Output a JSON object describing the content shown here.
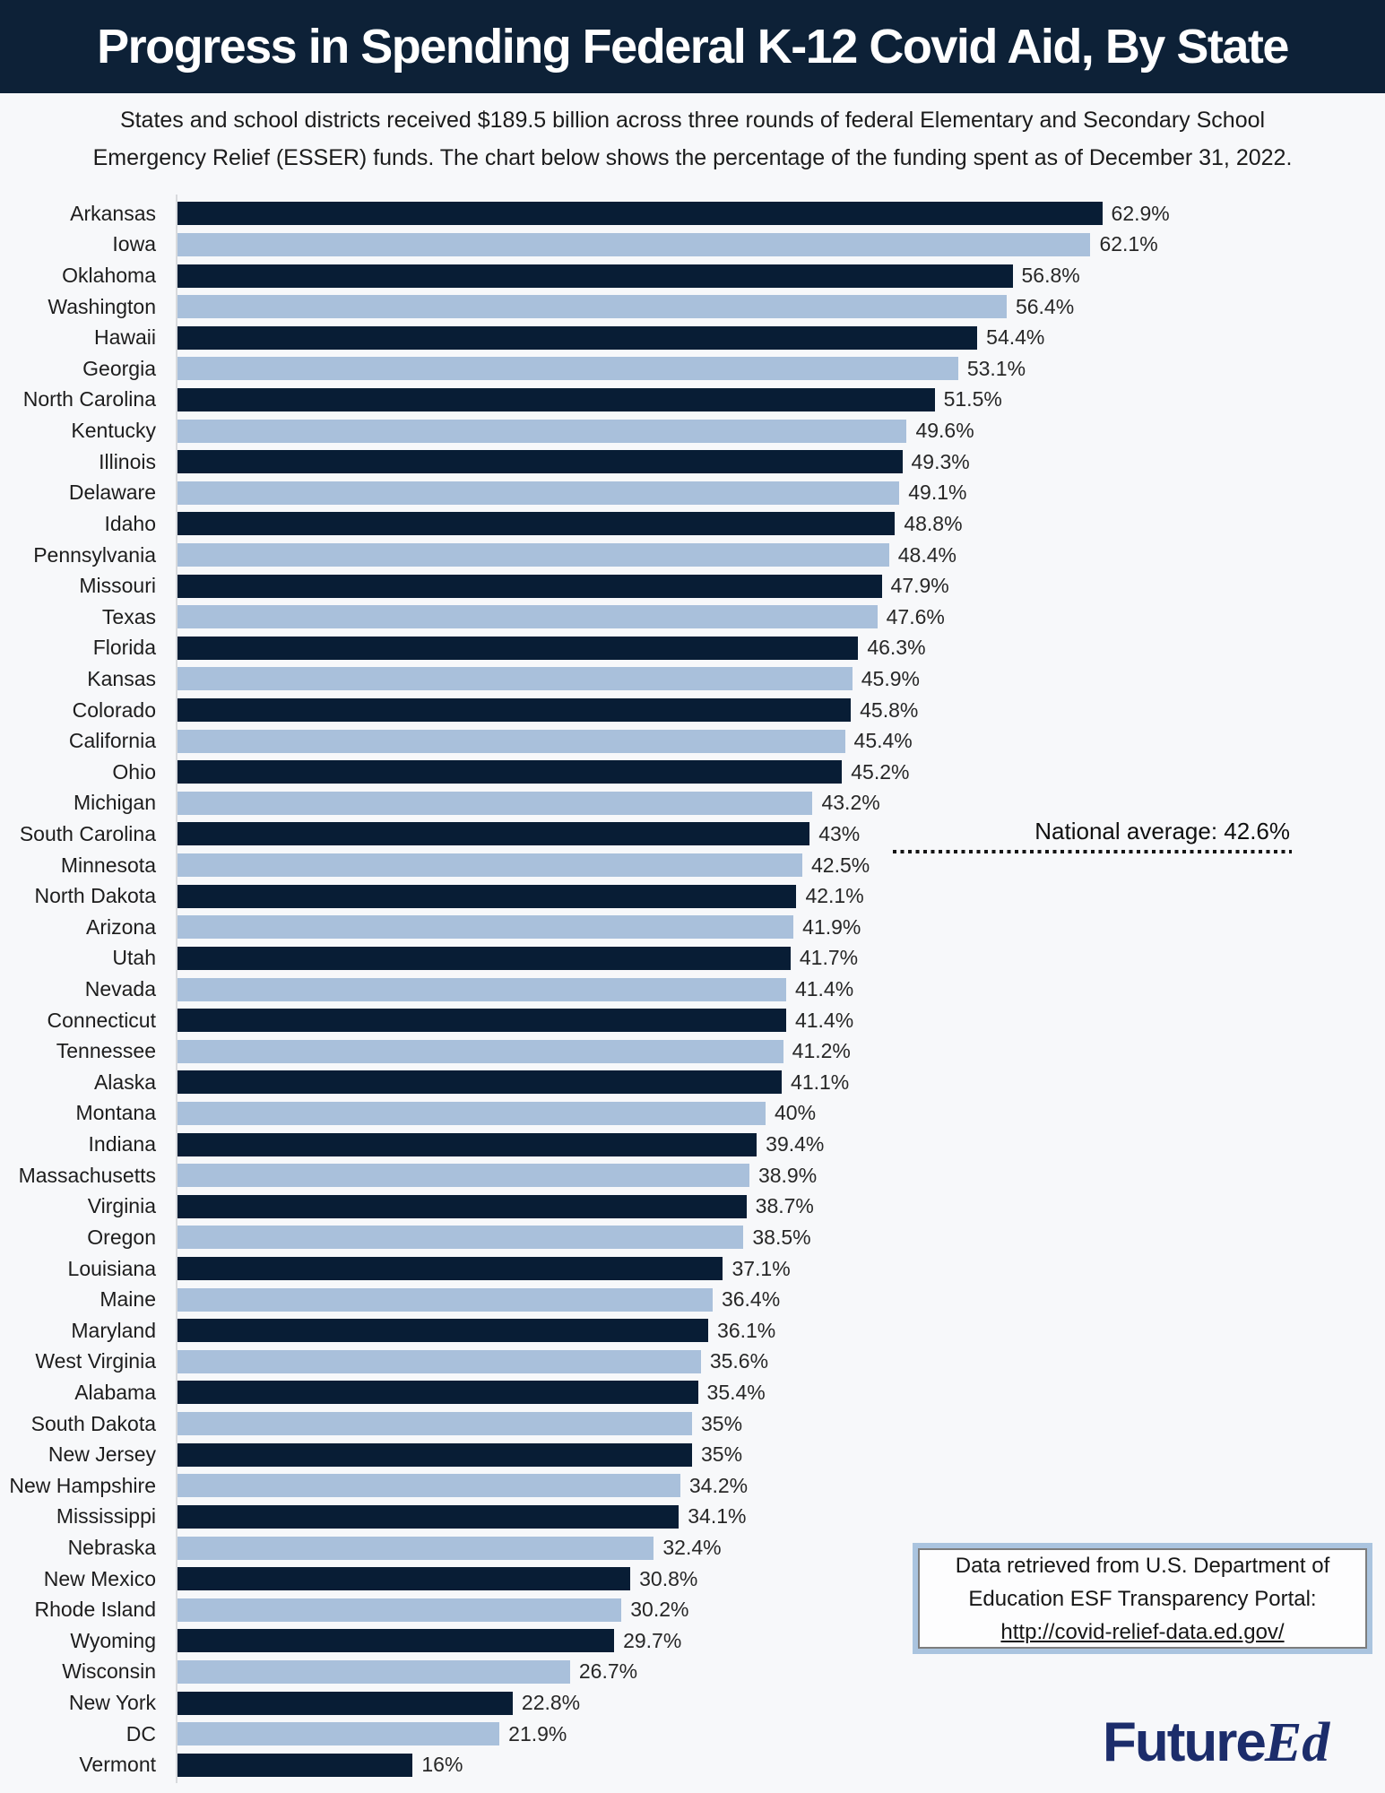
{
  "header": {
    "title": "Progress in Spending Federal K-12 Covid Aid, By State"
  },
  "subtitle": {
    "line1": "States and school districts received $189.5 billion across three rounds of federal Elementary and Secondary School",
    "line2": "Emergency Relief (ESSER) funds. The chart below shows the percentage of the funding spent as of December 31, 2022."
  },
  "chart_data": {
    "type": "bar",
    "orientation": "horizontal",
    "unit": "percent spent",
    "xlim": [
      0,
      63
    ],
    "grid": false,
    "legend": "none",
    "bar_color_odd_rows": "#081d35",
    "bar_color_even_rows": "#a9c0db",
    "categories": [
      "Arkansas",
      "Iowa",
      "Oklahoma",
      "Washington",
      "Hawaii",
      "Georgia",
      "North Carolina",
      "Kentucky",
      "Illinois",
      "Delaware",
      "Idaho",
      "Pennsylvania",
      "Missouri",
      "Texas",
      "Florida",
      "Kansas",
      "Colorado",
      "California",
      "Ohio",
      "Michigan",
      "South Carolina",
      "Minnesota",
      "North Dakota",
      "Arizona",
      "Utah",
      "Nevada",
      "Connecticut",
      "Tennessee",
      "Alaska",
      "Montana",
      "Indiana",
      "Massachusetts",
      "Virginia",
      "Oregon",
      "Louisiana",
      "Maine",
      "Maryland",
      "West Virginia",
      "Alabama",
      "South Dakota",
      "New Jersey",
      "New Hampshire",
      "Mississippi",
      "Nebraska",
      "New Mexico",
      "Rhode Island",
      "Wyoming",
      "Wisconsin",
      "New York",
      "DC",
      "Vermont"
    ],
    "values": [
      62.9,
      62.1,
      56.8,
      56.4,
      54.4,
      53.1,
      51.5,
      49.6,
      49.3,
      49.1,
      48.8,
      48.4,
      47.9,
      47.6,
      46.3,
      45.9,
      45.8,
      45.4,
      45.2,
      43.2,
      43,
      42.5,
      42.1,
      41.9,
      41.7,
      41.4,
      41.4,
      41.2,
      41.1,
      40,
      39.4,
      38.9,
      38.7,
      38.5,
      37.1,
      36.4,
      36.1,
      35.6,
      35.4,
      35,
      35,
      34.2,
      34.1,
      32.4,
      30.8,
      30.2,
      29.7,
      26.7,
      22.8,
      21.9,
      16
    ],
    "value_labels": [
      "62.9%",
      "62.1%",
      "56.8%",
      "56.4%",
      "54.4%",
      "53.1%",
      "51.5%",
      "49.6%",
      "49.3%",
      "49.1%",
      "48.8%",
      "48.4%",
      "47.9%",
      "47.6%",
      "46.3%",
      "45.9%",
      "45.8%",
      "45.4%",
      "45.2%",
      "43.2%",
      "43%",
      "42.5%",
      "42.1%",
      "41.9%",
      "41.7%",
      "41.4%",
      "41.4%",
      "41.2%",
      "41.1%",
      "40%",
      "39.4%",
      "38.9%",
      "38.7%",
      "38.5%",
      "37.1%",
      "36.4%",
      "36.1%",
      "35.6%",
      "35.4%",
      "35%",
      "35%",
      "34.2%",
      "34.1%",
      "32.4%",
      "30.8%",
      "30.2%",
      "29.7%",
      "26.7%",
      "22.8%",
      "21.9%",
      "16%"
    ],
    "national_average": {
      "label": "National average: 42.6%",
      "value": 42.6,
      "position": "between South Carolina and Minnesota rows"
    }
  },
  "source_box": {
    "line1": "Data retrieved from U.S. Department of",
    "line2": "Education ESF Transparency Portal:",
    "url": "http://covid-relief-data.ed.gov/"
  },
  "logo": {
    "part_sans": "Future",
    "part_serif": "Ed"
  },
  "colors": {
    "header_background": "#0d2137",
    "page_background": "#f7f8fa",
    "bar_dark": "#081d35",
    "bar_light": "#a9c0db",
    "logo_navy": "#1c2d6b",
    "source_border_blue": "#aac4df"
  }
}
